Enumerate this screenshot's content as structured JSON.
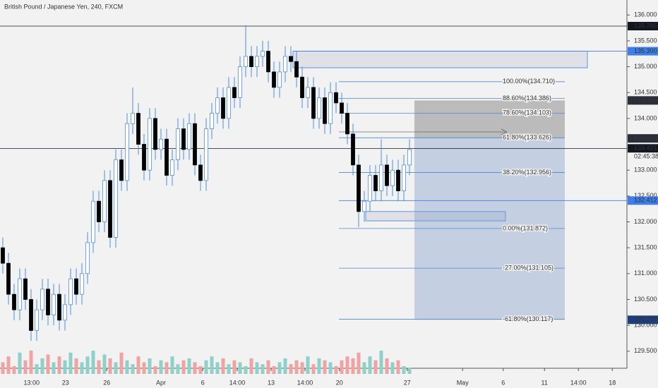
{
  "chart_data": {
    "type": "candlestick",
    "title": "British Pound / Japanese Yen, 240, FXCM",
    "open": [
      131.5,
      131.2,
      130.6,
      130.3,
      130.9,
      130.5,
      129.9,
      130.3,
      130.7,
      130.2,
      130.6,
      130.1,
      130.4,
      130.9,
      130.6,
      131.0,
      131.6,
      132.4,
      132.0,
      132.8,
      131.7,
      133.2,
      132.8,
      133.9,
      134.1,
      133.5,
      133.0,
      134.0,
      133.4,
      133.6,
      132.9,
      133.2,
      133.8,
      133.4,
      133.9,
      133.1,
      132.8,
      133.8,
      134.1,
      134.4,
      134.0,
      134.6,
      134.4,
      135.0,
      135.2,
      135.0,
      135.2,
      135.3,
      134.9,
      134.6,
      134.9,
      135.2,
      135.1,
      134.8,
      134.4,
      134.6,
      134.0,
      134.4,
      133.9,
      134.5,
      134.3,
      134.1,
      133.7,
      133.1,
      132.2,
      132.4,
      132.9,
      132.6,
      133.1,
      132.7,
      133.0,
      132.6,
      133.1
    ],
    "high": [
      131.7,
      131.4,
      130.8,
      131.1,
      131.1,
      130.7,
      130.5,
      130.9,
      130.9,
      130.8,
      130.8,
      130.6,
      131.1,
      131.1,
      131.2,
      131.8,
      132.6,
      132.6,
      133.0,
      133.0,
      133.4,
      133.4,
      134.1,
      134.6,
      134.3,
      133.7,
      134.2,
      134.2,
      133.8,
      133.8,
      133.4,
      134.0,
      134.0,
      134.1,
      134.1,
      133.3,
      134.0,
      134.3,
      134.6,
      134.6,
      134.8,
      134.8,
      135.2,
      135.8,
      135.4,
      135.4,
      135.5,
      135.5,
      135.1,
      135.1,
      135.4,
      135.4,
      135.3,
      135.0,
      134.8,
      134.8,
      134.6,
      134.6,
      134.7,
      134.7,
      134.5,
      134.3,
      133.9,
      133.3,
      132.6,
      133.1,
      133.1,
      133.6,
      133.3,
      133.2,
      133.2,
      133.3,
      133.6
    ],
    "low": [
      131.0,
      130.4,
      130.1,
      130.1,
      130.3,
      129.7,
      129.7,
      130.1,
      130.0,
      130.0,
      129.9,
      129.9,
      130.2,
      130.4,
      130.4,
      130.8,
      131.4,
      131.8,
      131.8,
      131.5,
      131.5,
      132.6,
      132.6,
      133.7,
      133.3,
      132.8,
      132.8,
      133.2,
      133.2,
      132.7,
      132.7,
      133.0,
      133.2,
      133.2,
      132.9,
      132.6,
      132.6,
      133.6,
      133.9,
      133.8,
      133.8,
      134.2,
      134.2,
      134.8,
      134.8,
      134.8,
      135.0,
      134.7,
      134.4,
      134.4,
      134.7,
      134.9,
      134.6,
      134.2,
      134.2,
      133.8,
      133.8,
      133.7,
      133.7,
      134.1,
      133.9,
      133.5,
      132.9,
      131.9,
      132.0,
      132.2,
      132.4,
      132.4,
      132.5,
      132.5,
      132.4,
      132.4,
      132.9
    ],
    "close": [
      131.2,
      130.6,
      130.3,
      130.9,
      130.5,
      129.9,
      130.3,
      130.7,
      130.2,
      130.6,
      130.1,
      130.4,
      130.9,
      130.6,
      131.0,
      131.6,
      132.4,
      132.0,
      132.8,
      131.7,
      133.2,
      132.8,
      133.9,
      134.1,
      133.5,
      133.0,
      134.0,
      133.4,
      133.6,
      132.9,
      133.2,
      133.8,
      133.4,
      133.9,
      133.1,
      132.8,
      133.8,
      134.1,
      134.4,
      134.0,
      134.6,
      134.4,
      135.0,
      135.2,
      135.0,
      135.2,
      135.3,
      134.9,
      134.6,
      134.9,
      135.2,
      135.1,
      134.8,
      134.4,
      134.6,
      134.0,
      134.4,
      133.9,
      134.5,
      134.3,
      134.1,
      133.7,
      133.1,
      132.2,
      132.4,
      132.9,
      132.6,
      133.1,
      132.7,
      133.0,
      132.6,
      133.1,
      133.4
    ],
    "volume": [
      30,
      45,
      20,
      55,
      35,
      60,
      25,
      40,
      50,
      30,
      45,
      35,
      55,
      40,
      30,
      45,
      60,
      35,
      50,
      40,
      30,
      55,
      35,
      25,
      45,
      30,
      40,
      20,
      35,
      30,
      45,
      25,
      35,
      40,
      30,
      20,
      35,
      45,
      30,
      40,
      25,
      35,
      30,
      20,
      40,
      30,
      25,
      35,
      20,
      30,
      40,
      25,
      35,
      30,
      45,
      25,
      40,
      35,
      30,
      20,
      35,
      45,
      40,
      55,
      30,
      45,
      35,
      60,
      40,
      30,
      35,
      20,
      15
    ],
    "volume_lim": [
      0,
      100
    ],
    "up_color": "#ffffff",
    "down_color": "#000000",
    "wick_color": "#4f8fe6",
    "volume_up_color": "#8fd0c8",
    "volume_down_color": "#f0a3a3",
    "xlim": [
      -0.5,
      110.5
    ],
    "xticks": [
      {
        "value": 5.1,
        "label": "13:00"
      },
      {
        "value": 11.1,
        "label": "23"
      },
      {
        "value": 18.4,
        "label": "26"
      },
      {
        "value": 28,
        "label": "Apr"
      },
      {
        "value": 35.4,
        "label": "6"
      },
      {
        "value": 41.5,
        "label": "14:00"
      },
      {
        "value": 47.5,
        "label": "13"
      },
      {
        "value": 53.5,
        "label": "14:00"
      },
      {
        "value": 59.6,
        "label": "20"
      },
      {
        "value": 71.6,
        "label": "27"
      },
      {
        "value": 81.4,
        "label": "May"
      },
      {
        "value": 88.6,
        "label": "6"
      },
      {
        "value": 95.9,
        "label": "11"
      },
      {
        "value": 101.9,
        "label": "14:00"
      },
      {
        "value": 107.9,
        "label": "18"
      }
    ],
    "ylim": [
      129.17,
      136.29
    ],
    "yticks": [
      {
        "value": 129.5,
        "label": "129.500"
      },
      {
        "value": 130,
        "label": "130.000"
      },
      {
        "value": 130.5,
        "label": "130.500"
      },
      {
        "value": 131,
        "label": "131.000"
      },
      {
        "value": 131.5,
        "label": "131.500"
      },
      {
        "value": 132,
        "label": "132.000"
      },
      {
        "value": 132.5,
        "label": "132.500"
      },
      {
        "value": 133,
        "label": "133.000"
      },
      {
        "value": 134,
        "label": "134.000"
      },
      {
        "value": 134.5,
        "label": "134.500"
      },
      {
        "value": 135,
        "label": "135.000"
      },
      {
        "value": 135.5,
        "label": "135.500"
      },
      {
        "value": 136,
        "label": "136.000"
      }
    ],
    "levels": [
      {
        "value": 135.785,
        "label": "135.785",
        "color": "#131722"
      },
      {
        "value": 135.3,
        "label": "135.300",
        "color": "#3d7ee8"
      },
      {
        "value": 133.421,
        "label": "133.421",
        "color": "#131722"
      },
      {
        "value": 132.412,
        "label": "132.412",
        "color": "#3d7ee8"
      }
    ],
    "countdown": "02:45:38",
    "fib": [
      {
        "value": 134.71,
        "label": "100.00%(134.710)"
      },
      {
        "value": 134.386,
        "label": "88.60%(134.386)"
      },
      {
        "value": 134.103,
        "label": "78.60%(134.103)"
      },
      {
        "value": 133.626,
        "label": "61.80%(133.626)"
      },
      {
        "value": 132.956,
        "label": "38.20%(132.956)"
      },
      {
        "value": 131.872,
        "label": "0.00%(131.872)"
      },
      {
        "value": 131.105,
        "label": "-27.00%(131.105)"
      },
      {
        "value": 130.117,
        "label": "-61.80%(130.117)"
      }
    ],
    "zones": [
      {
        "top": 135.3,
        "bottom": 134.98
      },
      {
        "top": 132.2,
        "bottom": 132.02
      }
    ],
    "position": {
      "stop": {
        "value": 134.348,
        "label": "134.348"
      },
      "entry": {
        "value": 133.614,
        "label": "133.614"
      },
      "target": {
        "value": 130.107,
        "label": "130.107"
      }
    }
  }
}
